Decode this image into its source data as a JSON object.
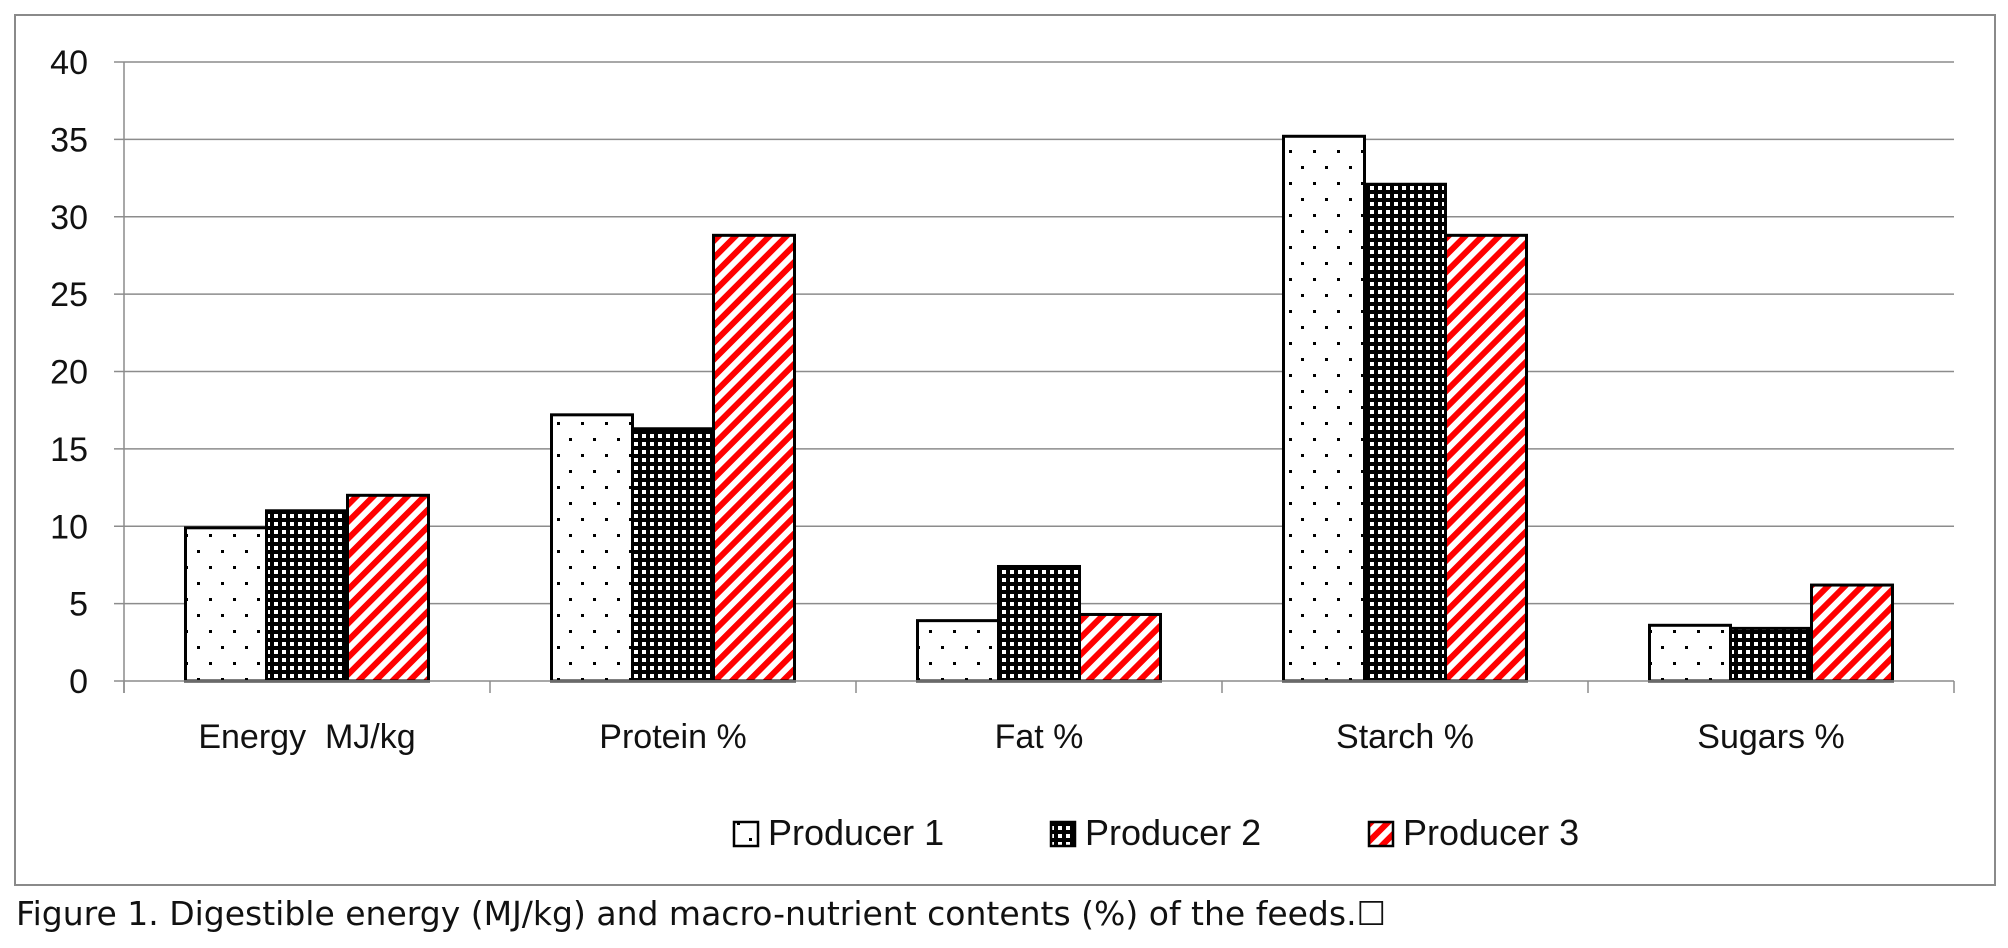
{
  "caption": "Figure 1. Digestible energy (MJ/kg) and macro-nutrient contents (%) of the feeds.☐",
  "chart_data": {
    "type": "bar",
    "title": "",
    "xlabel": "",
    "ylabel": "",
    "categories": [
      "Energy  MJ/kg",
      "Protein %",
      "Fat %",
      "Starch %",
      "Sugars %"
    ],
    "series": [
      {
        "name": "Producer 1",
        "pattern": "dots",
        "color": "#000000",
        "values": [
          9.9,
          17.2,
          3.9,
          35.2,
          3.6
        ]
      },
      {
        "name": "Producer 2",
        "pattern": "checker",
        "color": "#000000",
        "values": [
          11.0,
          16.3,
          7.4,
          32.1,
          3.4
        ]
      },
      {
        "name": "Producer 3",
        "pattern": "diagonal",
        "color": "#ff0000",
        "values": [
          12.0,
          28.8,
          4.3,
          28.8,
          6.2
        ]
      }
    ],
    "ylim": [
      0,
      40
    ],
    "yticks": [
      0,
      5,
      10,
      15,
      20,
      25,
      30,
      35,
      40
    ],
    "grid": true,
    "legend": "bottom"
  }
}
